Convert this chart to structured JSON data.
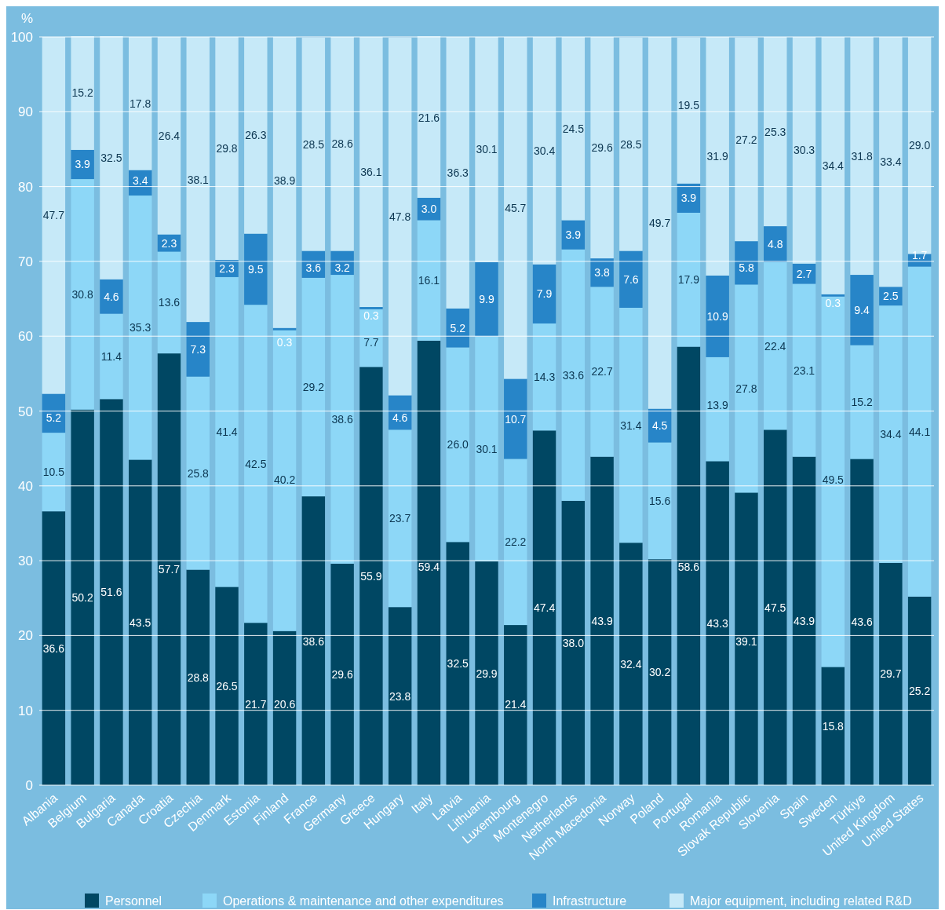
{
  "chart_data": {
    "type": "bar",
    "stacked": true,
    "ylabel": "%",
    "ylim": [
      0,
      100
    ],
    "yticks": [
      0,
      10,
      20,
      30,
      40,
      50,
      60,
      70,
      80,
      90,
      100
    ],
    "grid": "y",
    "legend": "bottom",
    "categories": [
      "Albania",
      "Belgium",
      "Bulgaria",
      "Canada",
      "Croatia",
      "Czechia",
      "Denmark",
      "Estonia",
      "Finland",
      "France",
      "Germany",
      "Greece",
      "Hungary",
      "Italy",
      "Latvia",
      "Lithuania",
      "Luxembourg",
      "Montenegro",
      "Netherlands",
      "North Macedonia",
      "Norway",
      "Poland",
      "Portugal",
      "Romania",
      "Slovak Republic",
      "Slovenia",
      "Spain",
      "Sweden",
      "Türkiye",
      "United Kingdom",
      "United States"
    ],
    "series": [
      {
        "name": "Personnel",
        "color": "#004763",
        "values": [
          36.6,
          50.2,
          51.6,
          43.5,
          57.7,
          28.8,
          26.5,
          21.7,
          20.6,
          38.6,
          29.6,
          55.9,
          23.8,
          59.4,
          32.5,
          29.9,
          21.4,
          47.4,
          38.0,
          43.9,
          32.4,
          30.2,
          58.6,
          43.3,
          39.1,
          47.5,
          43.9,
          15.8,
          43.6,
          29.7,
          25.2
        ],
        "value_labels": [
          "36.6",
          "50.2",
          "51.6",
          "43.5",
          "57.7",
          "28.8",
          "26.5",
          "21.7",
          "20.6",
          "38.6",
          "29.6",
          "55.9",
          "23.8",
          "59.4",
          "32.5",
          "29.9",
          "21.4",
          "47.4",
          "38.0",
          "43.9",
          "32.4",
          "30.2",
          "58.6",
          "43.3",
          "39.1",
          "47.5",
          "43.9",
          "15.8",
          "43.6",
          "29.7",
          "25.2"
        ]
      },
      {
        "name": "Operations & maintenance and other expenditures",
        "color": "#8dd7f7",
        "values": [
          10.5,
          30.8,
          11.4,
          35.3,
          13.6,
          25.8,
          41.4,
          42.5,
          40.2,
          29.2,
          38.6,
          7.7,
          23.7,
          16.1,
          26.0,
          30.1,
          22.2,
          14.3,
          33.6,
          22.7,
          31.4,
          15.6,
          17.9,
          13.9,
          27.8,
          22.4,
          23.1,
          49.5,
          15.2,
          34.4,
          44.1
        ],
        "value_labels": [
          "10.5",
          "30.8",
          "11.4",
          "35.3",
          "13.6",
          "25.8",
          "41.4",
          "42.5",
          "40.2",
          "29.2",
          "38.6",
          "7.7",
          "23.7",
          "16.1",
          "26.0",
          "30.1",
          "22.2",
          "14.3",
          "33.6",
          "22.7",
          "31.4",
          "15.6",
          "17.9",
          "13.9",
          "27.8",
          "22.4",
          "23.1",
          "49.5",
          "15.2",
          "34.4",
          "44.1"
        ]
      },
      {
        "name": "Infrastructure",
        "color": "#2785c8",
        "values": [
          5.2,
          3.9,
          4.6,
          3.4,
          2.3,
          7.3,
          2.3,
          9.5,
          0.3,
          3.6,
          3.2,
          0.3,
          4.6,
          3.0,
          5.2,
          9.9,
          10.7,
          7.9,
          3.9,
          3.8,
          7.6,
          4.5,
          3.9,
          10.9,
          5.8,
          4.8,
          2.7,
          0.3,
          9.4,
          2.5,
          1.7
        ],
        "value_labels": [
          "5.2",
          "3.9",
          "4.6",
          "3.4",
          "2.3",
          "7.3",
          "2.3",
          "9.5",
          "0.3",
          "3.6",
          "3.2",
          "0.3",
          "4.6",
          "3.0",
          "5.2",
          "9.9",
          "10.7",
          "7.9",
          "3.9",
          "3.8",
          "7.6",
          "4.5",
          "3.9",
          "10.9",
          "5.8",
          "4.8",
          "2.7",
          "0.3",
          "9.4",
          "2.5",
          "1.7"
        ]
      },
      {
        "name": "Major equipment, including related R&D",
        "color": "#c6e9f8",
        "values": [
          47.7,
          15.2,
          32.5,
          17.8,
          26.4,
          38.1,
          29.8,
          26.3,
          38.9,
          28.5,
          28.6,
          36.1,
          47.8,
          21.6,
          36.3,
          30.1,
          45.7,
          30.4,
          24.5,
          29.6,
          28.5,
          49.7,
          19.5,
          31.9,
          27.2,
          25.3,
          30.3,
          34.4,
          31.8,
          33.4,
          29.0
        ],
        "value_labels": [
          "47.7",
          "15.2",
          "32.5",
          "17.8",
          "26.4",
          "38.1",
          "29.8",
          "26.3",
          "38.9",
          "28.5",
          "28.6",
          "36.1",
          "47.8",
          "21.6",
          "36.3",
          "30.1",
          "45.7",
          "30.4",
          "24.5",
          "29.6",
          "28.5",
          "49.7",
          "19.5",
          "31.9",
          "27.2",
          "25.3",
          "30.3",
          "34.4",
          "31.8",
          "33.4",
          "29.0"
        ]
      }
    ]
  }
}
